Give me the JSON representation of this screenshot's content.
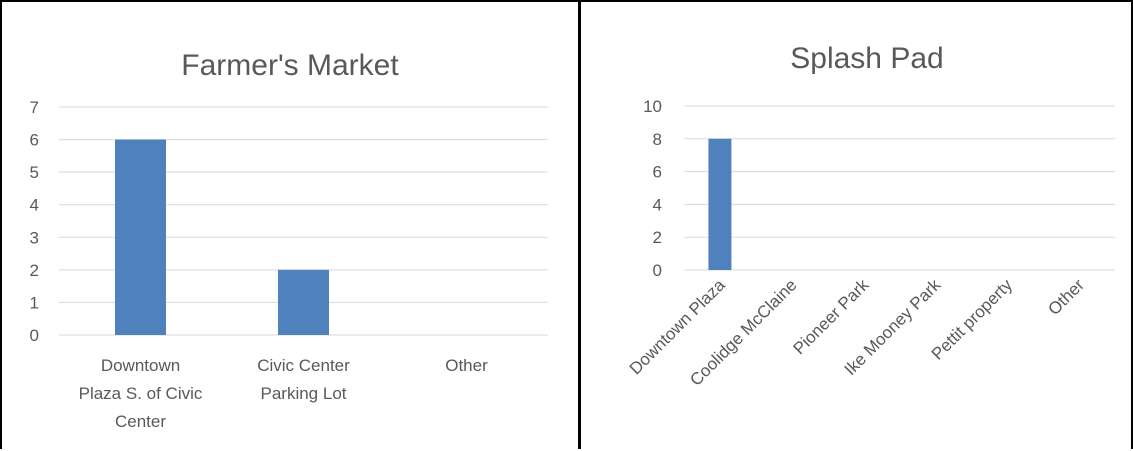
{
  "charts": [
    {
      "chart_data": {
        "type": "bar",
        "title": "Farmer's Market",
        "categories": [
          "Downtown Plaza S. of Civic Center",
          "Civic Center Parking Lot",
          "Other"
        ],
        "category_lines": [
          [
            "Downtown",
            "Plaza S. of Civic",
            "Center"
          ],
          [
            "Civic Center",
            "Parking Lot"
          ],
          [
            "Other"
          ]
        ],
        "values": [
          6,
          2,
          0
        ],
        "ylim": [
          0,
          7
        ],
        "yticks": [
          "0",
          "1",
          "2",
          "3",
          "4",
          "5",
          "6",
          "7"
        ],
        "xlabel": "",
        "ylabel": "",
        "grid": true,
        "bar_color": "#4f81bd"
      }
    },
    {
      "chart_data": {
        "type": "bar",
        "title": "Splash Pad",
        "categories": [
          "Downtown Plaza",
          "Coolidge McClaine",
          "Pioneer Park",
          "Ike Mooney Park",
          "Pettit property",
          "Other"
        ],
        "values": [
          8,
          0,
          0,
          0,
          0,
          0
        ],
        "ylim": [
          0,
          10
        ],
        "yticks": [
          "0",
          "2",
          "4",
          "6",
          "8",
          "10"
        ],
        "xlabel": "",
        "ylabel": "",
        "grid": true,
        "rotated_labels": true,
        "bar_color": "#4f81bd"
      }
    }
  ]
}
